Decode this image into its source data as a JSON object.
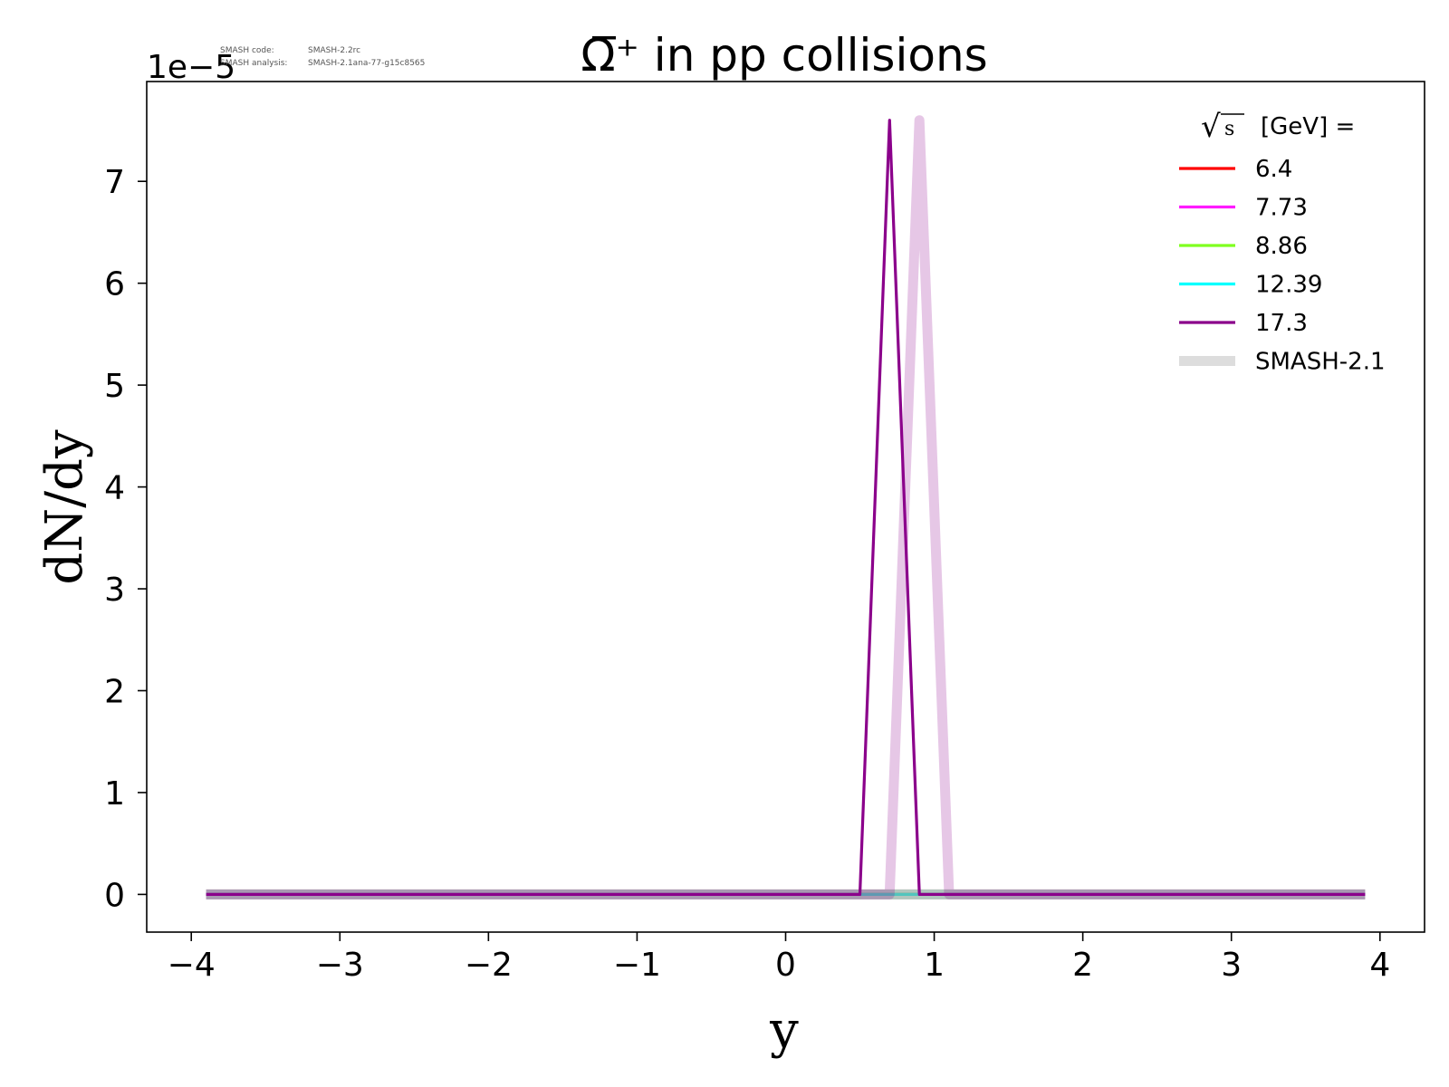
{
  "chart_data": {
    "type": "line",
    "title": "Ω̅⁺ in pp collisions",
    "xlabel": "y",
    "ylabel": "dN/dy",
    "offset_text": "1e−5",
    "xlim": [
      -4.3,
      4.3
    ],
    "ylim": [
      -0.37,
      7.98
    ],
    "y_scale_exponent": -5,
    "x_ticks": [
      -4,
      -3,
      -2,
      -1,
      0,
      1,
      2,
      3,
      4
    ],
    "x_tick_labels": [
      "−4",
      "−3",
      "−2",
      "−1",
      "0",
      "1",
      "2",
      "3",
      "4"
    ],
    "y_ticks": [
      0,
      1,
      2,
      3,
      4,
      5,
      6,
      7
    ],
    "y_tick_labels": [
      "0",
      "1",
      "2",
      "3",
      "4",
      "5",
      "6",
      "7"
    ],
    "grid": false,
    "legend": {
      "placement": "top-right",
      "title": "[GeV] =",
      "title_sqrt_symbol": "√s",
      "entries": [
        "6.4",
        "7.73",
        "8.86",
        "12.39",
        "17.3",
        "SMASH-2.1"
      ]
    },
    "meta": {
      "code_label": "SMASH code:",
      "code_value": "SMASH-2.2rc",
      "analysis_label": "SMASH analysis:",
      "analysis_value": "SMASH-2.1ana-77-g15c8565"
    },
    "series": [
      {
        "name": "6.4",
        "color": "#ff0000",
        "kind": "current",
        "x": [
          -3.9,
          0.5,
          0.7,
          0.9,
          3.9
        ],
        "y": [
          0,
          0,
          0,
          0,
          0
        ]
      },
      {
        "name": "7.73",
        "color": "#ff1aff",
        "kind": "current",
        "x": [
          -3.9,
          0.5,
          0.7,
          0.9,
          3.9
        ],
        "y": [
          0,
          0,
          0,
          0,
          0
        ]
      },
      {
        "name": "8.86",
        "color": "#7fff1f",
        "kind": "current",
        "x": [
          -3.9,
          0.5,
          0.7,
          0.9,
          3.9
        ],
        "y": [
          0,
          0,
          0,
          0,
          0
        ]
      },
      {
        "name": "12.39",
        "color": "#00ffff",
        "kind": "current",
        "x": [
          -3.9,
          0.5,
          0.7,
          0.9,
          3.9
        ],
        "y": [
          0,
          0,
          0,
          0,
          0
        ]
      },
      {
        "name": "SMASH-2.1 (6.4)",
        "color": "#ff0000",
        "kind": "reference",
        "x": [
          -3.9,
          3.9
        ],
        "y": [
          0,
          0
        ]
      },
      {
        "name": "SMASH-2.1 (7.73)",
        "color": "#ff1aff",
        "kind": "reference",
        "x": [
          -3.9,
          3.9
        ],
        "y": [
          0,
          0
        ]
      },
      {
        "name": "SMASH-2.1 (8.86)",
        "color": "#7fff1f",
        "kind": "reference",
        "x": [
          -3.9,
          3.9
        ],
        "y": [
          0,
          0
        ]
      },
      {
        "name": "SMASH-2.1 (12.39)",
        "color": "#00ffff",
        "kind": "reference",
        "x": [
          -3.9,
          3.9
        ],
        "y": [
          0,
          0
        ]
      },
      {
        "name": "SMASH-2.1 (17.3)",
        "color": "#8b008b",
        "kind": "reference",
        "x": [
          -3.9,
          0.7,
          0.9,
          1.1,
          3.9
        ],
        "y": [
          0,
          0,
          7.6,
          0,
          0
        ]
      },
      {
        "name": "17.3",
        "color": "#8b008b",
        "kind": "current",
        "x": [
          -3.9,
          0.5,
          0.7,
          0.9,
          3.9
        ],
        "y": [
          0,
          0,
          7.6,
          0,
          0
        ]
      }
    ],
    "legend_colors": [
      "#ff0000",
      "#ff1aff",
      "#7fff1f",
      "#00ffff",
      "#8b008b",
      "#dddddd"
    ]
  }
}
